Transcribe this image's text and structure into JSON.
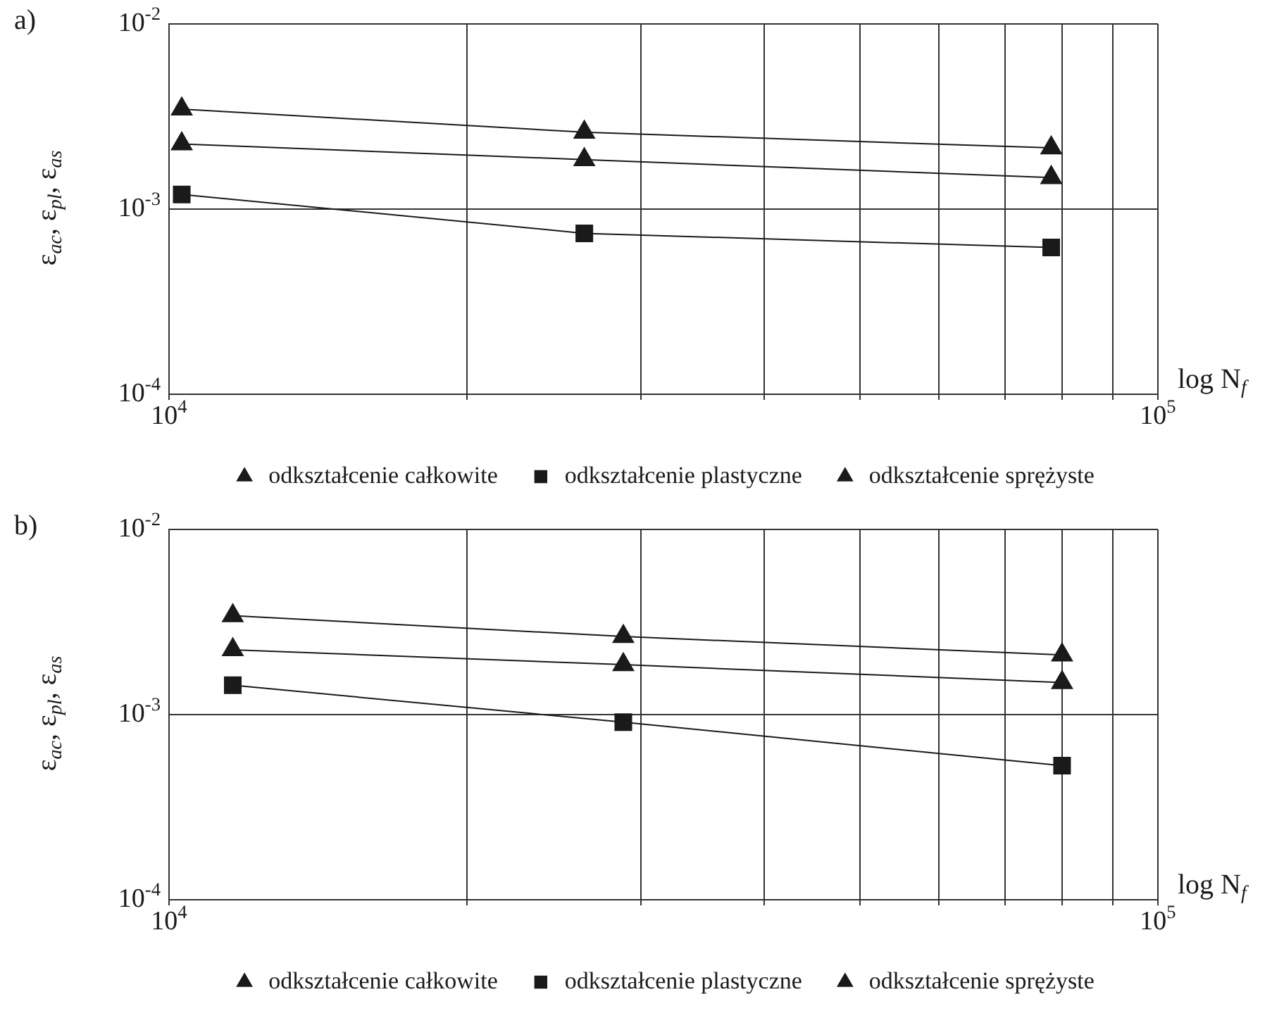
{
  "chart_data": [
    {
      "type": "line",
      "title": "a)",
      "xlabel": "log N$_{f}$",
      "ylabel": "ε$_{ac}$, ε$_{pl}$, ε$_{as}$",
      "log": "xy",
      "grid": true,
      "legend": "bottom",
      "xlim": [
        10000,
        100000
      ],
      "ylim": [
        0.0001,
        0.01
      ],
      "xticks": [
        {
          "value": 10000,
          "label": "10$^{4}$"
        },
        {
          "value": 20000,
          "label": null
        },
        {
          "value": 30000,
          "label": null
        },
        {
          "value": 40000,
          "label": null
        },
        {
          "value": 50000,
          "label": null
        },
        {
          "value": 60000,
          "label": null
        },
        {
          "value": 70000,
          "label": null
        },
        {
          "value": 80000,
          "label": null
        },
        {
          "value": 90000,
          "label": null
        },
        {
          "value": 100000,
          "label": "10$^{5}$"
        }
      ],
      "yticks": [
        {
          "value": 0.0001,
          "label": "10$^{-4}$"
        },
        {
          "value": 0.001,
          "label": "10$^{-3}$"
        },
        {
          "value": 0.01,
          "label": "10$^{-2}$"
        }
      ],
      "series": [
        {
          "name": "odkształcenie całkowite",
          "color": "#1a1a1a",
          "marker": "triangle",
          "x": [
            10300,
            26300,
            78000
          ],
          "values": [
            0.00347,
            0.0026,
            0.00214
          ]
        },
        {
          "name": "odkształcenie plastyczne",
          "color": "#1a1a1a",
          "marker": "square",
          "x": [
            10300,
            26300,
            78000
          ],
          "values": [
            0.0012,
            0.00074,
            0.00062
          ]
        },
        {
          "name": "odkształcenie sprężyste",
          "color": "#1a1a1a",
          "marker": "triangle",
          "x": [
            10300,
            26300,
            78000
          ],
          "values": [
            0.00225,
            0.00185,
            0.00148
          ]
        }
      ]
    },
    {
      "type": "line",
      "title": "b)",
      "xlabel": "log N$_{f}$",
      "ylabel": "ε$_{ac}$, ε$_{pl}$, ε$_{as}$",
      "log": "xy",
      "grid": true,
      "legend": "bottom",
      "xlim": [
        10000,
        100000
      ],
      "ylim": [
        0.0001,
        0.01
      ],
      "xticks": [
        {
          "value": 10000,
          "label": "10$^{4}$"
        },
        {
          "value": 20000,
          "label": null
        },
        {
          "value": 30000,
          "label": null
        },
        {
          "value": 40000,
          "label": null
        },
        {
          "value": 50000,
          "label": null
        },
        {
          "value": 60000,
          "label": null
        },
        {
          "value": 70000,
          "label": null
        },
        {
          "value": 80000,
          "label": null
        },
        {
          "value": 90000,
          "label": null
        },
        {
          "value": 100000,
          "label": "10$^{5}$"
        }
      ],
      "yticks": [
        {
          "value": 0.0001,
          "label": "10$^{-4}$"
        },
        {
          "value": 0.001,
          "label": "10$^{-3}$"
        },
        {
          "value": 0.01,
          "label": "10$^{-2}$"
        }
      ],
      "series": [
        {
          "name": "odkształcenie całkowite",
          "color": "#1a1a1a",
          "marker": "triangle",
          "x": [
            11600,
            28800,
            80000
          ],
          "values": [
            0.00342,
            0.00264,
            0.0021
          ]
        },
        {
          "name": "odkształcenie plastyczne",
          "color": "#1a1a1a",
          "marker": "square",
          "x": [
            11600,
            28800,
            80000
          ],
          "values": [
            0.00144,
            0.00091,
            0.00053
          ]
        },
        {
          "name": "odkształcenie sprężyste",
          "color": "#1a1a1a",
          "marker": "triangle",
          "x": [
            11600,
            28800,
            80000
          ],
          "values": [
            0.00224,
            0.00186,
            0.00149
          ]
        }
      ]
    }
  ]
}
